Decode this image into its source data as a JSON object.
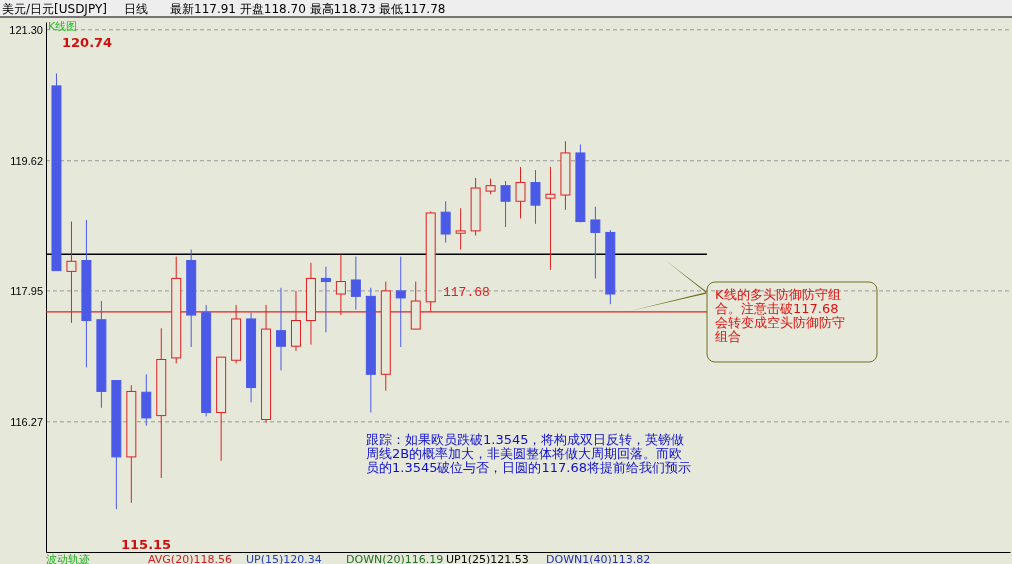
{
  "chart_data": {
    "type": "candlestick",
    "title": "美元/日元[USDJPY]",
    "subtitle": "日线",
    "categories": [
      null,
      null,
      null,
      null,
      null,
      null,
      null,
      null,
      null,
      null,
      null,
      null,
      null,
      null,
      null,
      null,
      null,
      null,
      null,
      null,
      null,
      null,
      null,
      null,
      null,
      null,
      null,
      null,
      null,
      null,
      null,
      null,
      null,
      null,
      null,
      null,
      null,
      null,
      null,
      null,
      null,
      null,
      null,
      null,
      null,
      null,
      null,
      null,
      null,
      null,
      null,
      null,
      null,
      null,
      null,
      null,
      null,
      null,
      null,
      null,
      null,
      null,
      null,
      null
    ],
    "ohlc": [
      [
        120.58,
        120.74,
        118.21,
        118.21
      ],
      [
        118.2,
        118.84,
        117.54,
        118.33
      ],
      [
        118.34,
        118.86,
        116.97,
        117.57
      ],
      [
        117.58,
        117.82,
        116.45,
        116.66
      ],
      [
        116.8,
        116.8,
        115.15,
        115.82
      ],
      [
        115.82,
        116.74,
        115.23,
        116.66
      ],
      [
        116.65,
        116.88,
        116.22,
        116.32
      ],
      [
        116.35,
        117.47,
        115.55,
        117.07
      ],
      [
        117.09,
        118.39,
        117.02,
        118.11
      ],
      [
        118.34,
        118.48,
        117.23,
        117.64
      ],
      [
        117.67,
        117.77,
        116.34,
        116.39
      ],
      [
        116.39,
        117.1,
        115.77,
        117.1
      ],
      [
        117.06,
        117.77,
        117.02,
        117.59
      ],
      [
        117.59,
        117.67,
        116.52,
        116.71
      ],
      [
        116.3,
        117.77,
        116.26,
        117.46
      ],
      [
        117.44,
        117.99,
        116.93,
        117.24
      ],
      [
        117.24,
        117.95,
        117.18,
        117.57
      ],
      [
        117.57,
        118.31,
        117.26,
        118.11
      ],
      [
        118.11,
        118.26,
        117.42,
        118.07
      ],
      [
        117.91,
        118.42,
        117.64,
        118.07
      ],
      [
        118.09,
        118.39,
        117.71,
        117.88
      ],
      [
        117.88,
        117.99,
        116.39,
        116.88
      ],
      [
        116.88,
        118.07,
        116.67,
        117.95
      ],
      [
        117.95,
        118.39,
        117.23,
        117.86
      ],
      [
        117.46,
        118.07,
        117.46,
        117.82
      ],
      [
        117.81,
        118.97,
        117.68,
        118.95
      ],
      [
        118.96,
        119.1,
        118.57,
        118.68
      ],
      [
        118.69,
        119.01,
        118.48,
        118.72
      ],
      [
        118.72,
        119.4,
        118.66,
        119.27
      ],
      [
        119.23,
        119.39,
        119.19,
        119.3
      ],
      [
        119.3,
        119.36,
        118.77,
        119.1
      ],
      [
        119.1,
        119.54,
        118.88,
        119.34
      ],
      [
        119.34,
        119.5,
        118.81,
        119.05
      ],
      [
        119.14,
        119.54,
        118.22,
        119.19
      ],
      [
        119.18,
        119.87,
        118.99,
        119.72
      ],
      [
        119.72,
        119.83,
        118.83,
        118.84
      ],
      [
        118.86,
        119.03,
        118.11,
        118.7
      ],
      [
        118.7,
        118.73,
        117.78,
        117.91
      ],
      null,
      null,
      null,
      null,
      null,
      null,
      null,
      null,
      null,
      null,
      null,
      null,
      null,
      null,
      null,
      null,
      null,
      null,
      null,
      null,
      null,
      null,
      null,
      null,
      null,
      null
    ],
    "ylim": [
      114.6,
      121.4
    ],
    "yticks": [
      {
        "value": 121.3,
        "label": "121.30"
      },
      {
        "value": 119.62,
        "label": "119.62"
      },
      {
        "value": 117.95,
        "label": "117.95"
      },
      {
        "value": 116.27,
        "label": "116.27"
      }
    ],
    "grid": "y",
    "tick_labels": "y",
    "ref_lines": [
      {
        "axis": "y",
        "value": 118.42,
        "color": "#000000"
      },
      {
        "axis": "y",
        "value": 117.68,
        "label": "117.68",
        "color": "#e02020"
      }
    ],
    "annotations": [
      "最新117.91 开盘118.70 最高118.73 最低117.78",
      "K线图",
      "120.74",
      "115.15",
      "K线的多头防御防守组合。注意击破117.68会转变成空头防御防守组合",
      "跟踪：如果欧员跌破1.3545，将构成双日反转，英镑做周线2B的概率加大，非美圆整体将做大周期回落。而欧员的1.3545破位与否，日圆的117.68将提前给我们预示",
      "波动轨迹",
      "AVG(20)118.56",
      "UP(15)120.34",
      "DOWN(20)116.19",
      "UP1(25)121.53",
      "DOWN1(40)113.82"
    ]
  }
}
